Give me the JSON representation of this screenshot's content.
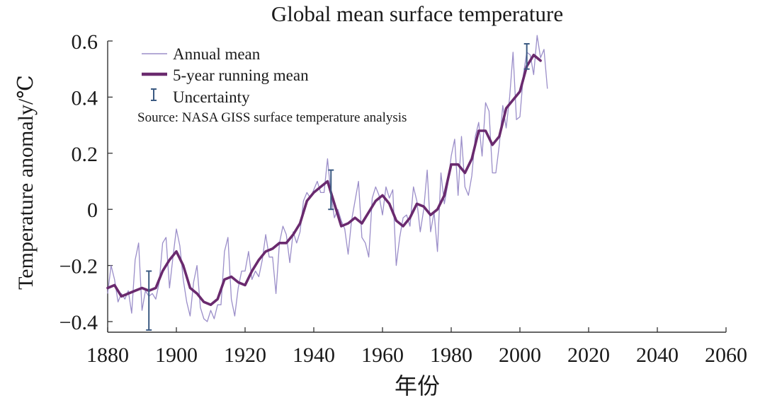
{
  "chart_data": {
    "type": "line",
    "title": "Global mean surface temperature",
    "xlabel": "年份",
    "ylabel": "Temperature anomaly/℃",
    "xlim": [
      1880,
      2060
    ],
    "ylim": [
      -0.45,
      0.6
    ],
    "x_ticks": [
      1880,
      1900,
      1920,
      1940,
      1960,
      1980,
      2000,
      2020,
      2040,
      2060
    ],
    "x_tick_labels": [
      "1880",
      "1900",
      "1920",
      "1940",
      "1960",
      "1980",
      "2000",
      "2020",
      "2040",
      "2060"
    ],
    "y_ticks": [
      0.6,
      0.4,
      0.2,
      0,
      -0.2,
      -0.4
    ],
    "y_tick_labels": [
      "0.6",
      "0.4",
      "0.2",
      "0",
      "−0.2",
      "−0.4"
    ],
    "legend": {
      "placement": "top-left",
      "entries": [
        "Annual mean",
        "5-year running mean",
        "Uncertainty"
      ]
    },
    "source_note": "Source: NASA GISS surface temperature analysis",
    "colors": {
      "annual": "#9b8ec9",
      "running": "#6a2a6e",
      "uncertainty": "#3b5a82",
      "axis": "#333333"
    },
    "series": [
      {
        "name": "Annual mean",
        "x": [
          1880,
          1881,
          1882,
          1883,
          1884,
          1885,
          1886,
          1887,
          1888,
          1889,
          1890,
          1891,
          1892,
          1893,
          1894,
          1895,
          1896,
          1897,
          1898,
          1899,
          1900,
          1901,
          1902,
          1903,
          1904,
          1905,
          1906,
          1907,
          1908,
          1909,
          1910,
          1911,
          1912,
          1913,
          1914,
          1915,
          1916,
          1917,
          1918,
          1919,
          1920,
          1921,
          1922,
          1923,
          1924,
          1925,
          1926,
          1927,
          1928,
          1929,
          1930,
          1931,
          1932,
          1933,
          1934,
          1935,
          1936,
          1937,
          1938,
          1939,
          1940,
          1941,
          1942,
          1943,
          1944,
          1945,
          1946,
          1947,
          1948,
          1949,
          1950,
          1951,
          1952,
          1953,
          1954,
          1955,
          1956,
          1957,
          1958,
          1959,
          1960,
          1961,
          1962,
          1963,
          1964,
          1965,
          1966,
          1967,
          1968,
          1969,
          1970,
          1971,
          1972,
          1973,
          1974,
          1975,
          1976,
          1977,
          1978,
          1979,
          1980,
          1981,
          1982,
          1983,
          1984,
          1985,
          1986,
          1987,
          1988,
          1989,
          1990,
          1991,
          1992,
          1993,
          1994,
          1995,
          1996,
          1997,
          1998,
          1999,
          2000,
          2001,
          2002,
          2003,
          2004,
          2005,
          2006,
          2007,
          2008
        ],
        "values": [
          -0.3,
          -0.2,
          -0.25,
          -0.33,
          -0.3,
          -0.32,
          -0.29,
          -0.37,
          -0.18,
          -0.12,
          -0.36,
          -0.29,
          -0.31,
          -0.3,
          -0.32,
          -0.26,
          -0.12,
          -0.1,
          -0.28,
          -0.17,
          -0.07,
          -0.13,
          -0.25,
          -0.33,
          -0.38,
          -0.26,
          -0.2,
          -0.35,
          -0.39,
          -0.4,
          -0.36,
          -0.39,
          -0.34,
          -0.34,
          -0.15,
          -0.1,
          -0.32,
          -0.38,
          -0.28,
          -0.22,
          -0.22,
          -0.15,
          -0.25,
          -0.22,
          -0.24,
          -0.18,
          -0.09,
          -0.17,
          -0.17,
          -0.3,
          -0.12,
          -0.06,
          -0.09,
          -0.19,
          -0.08,
          -0.12,
          -0.08,
          0.03,
          0.06,
          0.04,
          0.07,
          0.1,
          0.06,
          0.06,
          0.18,
          0.05,
          -0.03,
          0.0,
          -0.04,
          -0.07,
          -0.16,
          -0.04,
          0.03,
          0.1,
          -0.1,
          -0.12,
          -0.17,
          0.04,
          0.08,
          0.05,
          -0.02,
          0.08,
          0.04,
          0.07,
          -0.2,
          -0.1,
          -0.03,
          -0.02,
          -0.06,
          0.08,
          0.03,
          -0.08,
          0.0,
          0.14,
          -0.08,
          -0.01,
          -0.15,
          0.13,
          0.02,
          0.09,
          0.19,
          0.25,
          0.05,
          0.26,
          0.08,
          0.05,
          0.12,
          0.26,
          0.31,
          0.19,
          0.38,
          0.35,
          0.13,
          0.13,
          0.23,
          0.37,
          0.29,
          0.4,
          0.56,
          0.32,
          0.33,
          0.48,
          0.56,
          0.55,
          0.48,
          0.62,
          0.54,
          0.57,
          0.43
        ]
      },
      {
        "name": "5-year running mean",
        "x": [
          1880,
          1882,
          1884,
          1886,
          1888,
          1890,
          1892,
          1894,
          1896,
          1898,
          1900,
          1902,
          1904,
          1906,
          1908,
          1910,
          1912,
          1914,
          1916,
          1918,
          1920,
          1922,
          1924,
          1926,
          1928,
          1930,
          1932,
          1934,
          1936,
          1938,
          1940,
          1942,
          1944,
          1946,
          1948,
          1950,
          1952,
          1954,
          1956,
          1958,
          1960,
          1962,
          1964,
          1966,
          1968,
          1970,
          1972,
          1974,
          1976,
          1978,
          1980,
          1982,
          1984,
          1986,
          1988,
          1990,
          1992,
          1994,
          1996,
          1998,
          2000,
          2002,
          2004,
          2006
        ],
        "values": [
          -0.28,
          -0.27,
          -0.31,
          -0.3,
          -0.29,
          -0.28,
          -0.29,
          -0.28,
          -0.22,
          -0.18,
          -0.15,
          -0.2,
          -0.28,
          -0.3,
          -0.33,
          -0.34,
          -0.32,
          -0.25,
          -0.24,
          -0.26,
          -0.27,
          -0.22,
          -0.18,
          -0.15,
          -0.14,
          -0.12,
          -0.12,
          -0.09,
          -0.05,
          0.03,
          0.06,
          0.08,
          0.1,
          0.02,
          -0.06,
          -0.05,
          -0.03,
          -0.05,
          -0.01,
          0.03,
          0.05,
          0.02,
          -0.04,
          -0.06,
          -0.03,
          0.02,
          0.01,
          -0.02,
          0.0,
          0.05,
          0.16,
          0.16,
          0.13,
          0.18,
          0.28,
          0.28,
          0.23,
          0.26,
          0.36,
          0.39,
          0.42,
          0.51,
          0.55,
          0.53
        ]
      }
    ],
    "uncertainty": [
      {
        "x": 1892,
        "low": -0.43,
        "high": -0.22
      },
      {
        "x": 1945,
        "low": 0.0,
        "high": 0.14
      },
      {
        "x": 2002,
        "low": 0.5,
        "high": 0.59
      }
    ]
  }
}
